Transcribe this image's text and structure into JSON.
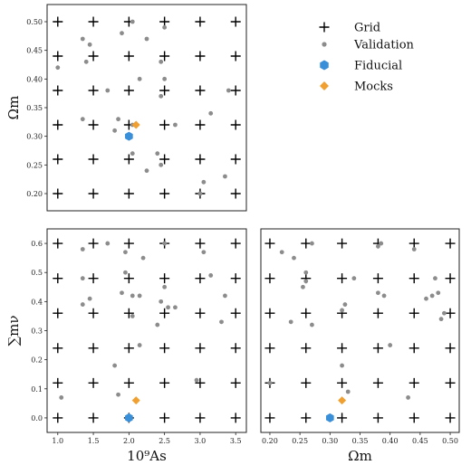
{
  "chart_data": [
    {
      "panel": "As-Om",
      "type": "scatter",
      "xlabel": "",
      "ylabel": "Ωm",
      "xlim": [
        0.85,
        3.65
      ],
      "ylim": [
        0.17,
        0.53
      ],
      "xticks": [],
      "yticks": [
        "0.20",
        "0.25",
        "0.30",
        "0.35",
        "0.40",
        "0.45",
        "0.50"
      ],
      "ytick_values": [
        0.2,
        0.25,
        0.3,
        0.35,
        0.4,
        0.45,
        0.5
      ],
      "grid_x": [
        1.0,
        1.5,
        2.0,
        2.5,
        3.0,
        3.5
      ],
      "grid_y": [
        0.2,
        0.26,
        0.32,
        0.38,
        0.44,
        0.5
      ],
      "validation": [
        [
          1.0,
          0.42
        ],
        [
          1.35,
          0.47
        ],
        [
          1.45,
          0.46
        ],
        [
          1.4,
          0.43
        ],
        [
          1.9,
          0.48
        ],
        [
          2.05,
          0.5
        ],
        [
          2.25,
          0.47
        ],
        [
          2.5,
          0.49
        ],
        [
          2.45,
          0.43
        ],
        [
          2.5,
          0.4
        ],
        [
          2.15,
          0.4
        ],
        [
          1.7,
          0.38
        ],
        [
          2.45,
          0.37
        ],
        [
          3.4,
          0.38
        ],
        [
          1.35,
          0.33
        ],
        [
          1.85,
          0.33
        ],
        [
          1.8,
          0.31
        ],
        [
          2.05,
          0.32
        ],
        [
          2.65,
          0.32
        ],
        [
          3.15,
          0.34
        ],
        [
          2.05,
          0.27
        ],
        [
          2.4,
          0.27
        ],
        [
          2.45,
          0.25
        ],
        [
          2.25,
          0.24
        ],
        [
          3.35,
          0.23
        ],
        [
          3.0,
          0.2
        ],
        [
          3.05,
          0.22
        ]
      ],
      "fiducial": [
        2.0,
        0.3
      ],
      "mocks": [
        2.1,
        0.32
      ]
    },
    {
      "panel": "As-Mnu",
      "type": "scatter",
      "xlabel": "10⁹As",
      "ylabel": "∑mν",
      "xlim": [
        0.85,
        3.65
      ],
      "ylim": [
        -0.05,
        0.65
      ],
      "xticks": [
        "1.0",
        "1.5",
        "2.0",
        "2.5",
        "3.0",
        "3.5"
      ],
      "xtick_values": [
        1.0,
        1.5,
        2.0,
        2.5,
        3.0,
        3.5
      ],
      "yticks": [
        "0.0",
        "0.1",
        "0.2",
        "0.3",
        "0.4",
        "0.5",
        "0.6"
      ],
      "ytick_values": [
        0.0,
        0.1,
        0.2,
        0.3,
        0.4,
        0.5,
        0.6
      ],
      "grid_x": [
        1.0,
        1.5,
        2.0,
        2.5,
        3.0,
        3.5
      ],
      "grid_y": [
        0.0,
        0.12,
        0.24,
        0.36,
        0.48,
        0.6
      ],
      "validation": [
        [
          1.05,
          0.07
        ],
        [
          1.35,
          0.58
        ],
        [
          1.7,
          0.6
        ],
        [
          1.95,
          0.57
        ],
        [
          2.5,
          0.6
        ],
        [
          2.2,
          0.55
        ],
        [
          3.05,
          0.57
        ],
        [
          1.35,
          0.48
        ],
        [
          1.45,
          0.41
        ],
        [
          1.35,
          0.39
        ],
        [
          1.95,
          0.5
        ],
        [
          2.05,
          0.42
        ],
        [
          1.9,
          0.43
        ],
        [
          2.15,
          0.42
        ],
        [
          2.5,
          0.45
        ],
        [
          2.45,
          0.4
        ],
        [
          2.55,
          0.38
        ],
        [
          2.65,
          0.38
        ],
        [
          2.4,
          0.32
        ],
        [
          2.05,
          0.35
        ],
        [
          3.15,
          0.49
        ],
        [
          3.35,
          0.42
        ],
        [
          3.3,
          0.33
        ],
        [
          1.8,
          0.18
        ],
        [
          1.85,
          0.08
        ],
        [
          2.15,
          0.25
        ],
        [
          2.95,
          0.13
        ]
      ],
      "fiducial": [
        2.0,
        0.0
      ],
      "mocks": [
        2.1,
        0.06
      ]
    },
    {
      "panel": "Om-Mnu",
      "type": "scatter",
      "xlabel": "Ωm",
      "ylabel": "",
      "xlim": [
        0.185,
        0.515
      ],
      "ylim": [
        -0.05,
        0.65
      ],
      "xticks": [
        "0.20",
        "0.25",
        "0.30",
        "0.35",
        "0.40",
        "0.45",
        "0.50"
      ],
      "xtick_values": [
        0.2,
        0.25,
        0.3,
        0.35,
        0.4,
        0.45,
        0.5
      ],
      "yticks": [],
      "grid_x": [
        0.2,
        0.26,
        0.32,
        0.38,
        0.44,
        0.5
      ],
      "grid_y": [
        0.0,
        0.12,
        0.24,
        0.36,
        0.48,
        0.6
      ],
      "validation": [
        [
          0.2,
          0.12
        ],
        [
          0.22,
          0.57
        ],
        [
          0.24,
          0.55
        ],
        [
          0.26,
          0.5
        ],
        [
          0.26,
          0.47
        ],
        [
          0.255,
          0.45
        ],
        [
          0.27,
          0.6
        ],
        [
          0.38,
          0.59
        ],
        [
          0.385,
          0.6
        ],
        [
          0.44,
          0.58
        ],
        [
          0.325,
          0.39
        ],
        [
          0.34,
          0.48
        ],
        [
          0.38,
          0.43
        ],
        [
          0.39,
          0.42
        ],
        [
          0.46,
          0.41
        ],
        [
          0.47,
          0.42
        ],
        [
          0.48,
          0.43
        ],
        [
          0.49,
          0.36
        ],
        [
          0.485,
          0.34
        ],
        [
          0.475,
          0.48
        ],
        [
          0.235,
          0.33
        ],
        [
          0.27,
          0.32
        ],
        [
          0.32,
          0.37
        ],
        [
          0.32,
          0.18
        ],
        [
          0.33,
          0.09
        ],
        [
          0.4,
          0.25
        ],
        [
          0.43,
          0.07
        ]
      ],
      "fiducial": [
        0.3,
        0.0
      ],
      "mocks": [
        0.32,
        0.06
      ]
    }
  ],
  "legend": {
    "items": [
      {
        "label": "Grid",
        "marker": "plus",
        "color": "#000000"
      },
      {
        "label": "Validation",
        "marker": "dot",
        "color": "#8c8c8c"
      },
      {
        "label": "Fiducial",
        "marker": "hexagon",
        "color": "#3a8fd9"
      },
      {
        "label": "Mocks",
        "marker": "diamond",
        "color": "#f0a030"
      }
    ]
  }
}
